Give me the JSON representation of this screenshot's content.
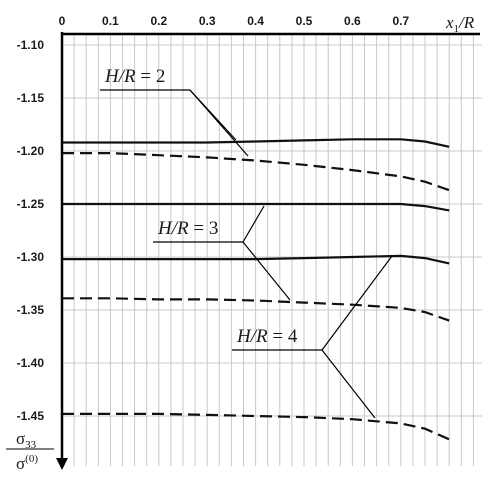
{
  "chart_data": {
    "type": "line",
    "x_axis": {
      "label_var": "x",
      "label_sub": "1",
      "label_rest": "/R",
      "ticks": [
        0,
        0.1,
        0.2,
        0.3,
        0.4,
        0.5,
        0.6,
        0.7
      ],
      "tick_labels": [
        "0",
        "0.1",
        "0.2",
        "0.3",
        "0.4",
        "0.5",
        "0.6",
        "0.7"
      ],
      "range": [
        0,
        0.8
      ]
    },
    "y_axis": {
      "label_num": "σ",
      "label_num_sub": "33",
      "label_den": "σ",
      "label_den_sup": "(0)",
      "ticks": [
        -1.1,
        -1.15,
        -1.2,
        -1.25,
        -1.3,
        -1.35,
        -1.4,
        -1.45
      ],
      "tick_labels": [
        "-1.10",
        "-1.15",
        "-1.20",
        "-1.25",
        "-1.30",
        "-1.35",
        "-1.40",
        "-1.45"
      ],
      "range": [
        -1.1,
        -1.48
      ]
    },
    "grid": true,
    "series": [
      {
        "group": "H/R = 2",
        "style": "solid",
        "x": [
          0,
          0.1,
          0.2,
          0.3,
          0.4,
          0.5,
          0.6,
          0.7,
          0.75,
          0.8
        ],
        "y": [
          -1.192,
          -1.192,
          -1.192,
          -1.192,
          -1.191,
          -1.19,
          -1.189,
          -1.189,
          -1.191,
          -1.196
        ]
      },
      {
        "group": "H/R = 2",
        "style": "dashed",
        "x": [
          0,
          0.1,
          0.2,
          0.3,
          0.4,
          0.5,
          0.6,
          0.7,
          0.75,
          0.8
        ],
        "y": [
          -1.202,
          -1.202,
          -1.204,
          -1.206,
          -1.209,
          -1.213,
          -1.218,
          -1.224,
          -1.229,
          -1.237
        ]
      },
      {
        "group": "H/R = 3",
        "style": "solid",
        "x": [
          0,
          0.1,
          0.2,
          0.3,
          0.4,
          0.5,
          0.6,
          0.7,
          0.75,
          0.8
        ],
        "y": [
          -1.25,
          -1.25,
          -1.25,
          -1.25,
          -1.25,
          -1.25,
          -1.25,
          -1.25,
          -1.252,
          -1.256
        ]
      },
      {
        "group": "H/R = 3",
        "style": "dashed",
        "x": [
          0,
          0.1,
          0.2,
          0.3,
          0.4,
          0.5,
          0.6,
          0.7,
          0.75,
          0.8
        ],
        "y": [
          -1.339,
          -1.339,
          -1.34,
          -1.34,
          -1.341,
          -1.343,
          -1.345,
          -1.348,
          -1.352,
          -1.36
        ]
      },
      {
        "group": "H/R = 4",
        "style": "solid",
        "x": [
          0,
          0.1,
          0.2,
          0.3,
          0.4,
          0.5,
          0.6,
          0.7,
          0.75,
          0.8
        ],
        "y": [
          -1.302,
          -1.302,
          -1.302,
          -1.302,
          -1.302,
          -1.301,
          -1.3,
          -1.299,
          -1.301,
          -1.306
        ]
      },
      {
        "group": "H/R = 4",
        "style": "dashed",
        "x": [
          0,
          0.1,
          0.2,
          0.3,
          0.4,
          0.5,
          0.6,
          0.7,
          0.75,
          0.8
        ],
        "y": [
          -1.448,
          -1.448,
          -1.448,
          -1.449,
          -1.45,
          -1.451,
          -1.453,
          -1.457,
          -1.462,
          -1.472
        ]
      }
    ],
    "annotations": [
      {
        "text_var": "H/R",
        "text_eq": " = ",
        "text_val": "2"
      },
      {
        "text_var": "H/R",
        "text_eq": " = ",
        "text_val": "3"
      },
      {
        "text_var": "H/R",
        "text_eq": " = ",
        "text_val": "4"
      }
    ]
  }
}
